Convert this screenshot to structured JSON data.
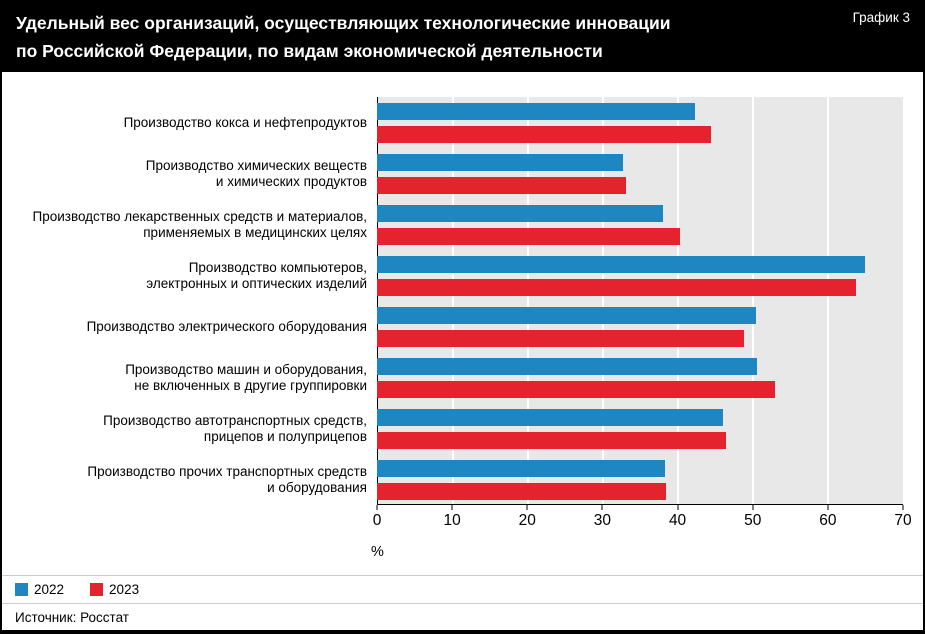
{
  "header": {
    "title": "Удельный вес организаций, осуществляющих технологические инновации\nпо Российской Федерации, по видам экономической деятельности",
    "corner_label": "График 3"
  },
  "chart_data": {
    "type": "bar",
    "orientation": "horizontal",
    "title": "Удельный вес организаций, осуществляющих технологические инновации по Российской Федерации, по видам экономической деятельности",
    "xlabel": "%",
    "xlim": [
      0,
      70
    ],
    "xticks": [
      0,
      10,
      20,
      30,
      40,
      50,
      60,
      70
    ],
    "grid": "white vertical gridlines on gray plot background",
    "plot_background": "#e8e8e8",
    "legend_position": "bottom-left",
    "categories": [
      "Производство кокса и нефтепродуктов",
      "Производство химических веществ\nи химических продуктов",
      "Производство лекарственных средств и материалов,\nприменяемых в медицинских целях",
      "Производство компьютеров,\nэлектронных и оптических изделий",
      "Производство электрического оборудования",
      "Производство машин и оборудования,\nне включенных в другие группировки",
      "Производство автотранспортных средств,\nприцепов и полуприцепов",
      "Производство прочих транспортных средств\nи оборудования"
    ],
    "series": [
      {
        "name": "2022",
        "color": "#1e87c2",
        "values": [
          42.3,
          32.7,
          38.0,
          64.9,
          50.4,
          50.6,
          46.0,
          38.3
        ]
      },
      {
        "name": "2023",
        "color": "#e5232e",
        "values": [
          44.4,
          33.2,
          40.3,
          63.8,
          48.9,
          53.0,
          46.4,
          38.5
        ]
      }
    ]
  },
  "legend": {
    "items": [
      {
        "label": "2022",
        "color": "#1e87c2"
      },
      {
        "label": "2023",
        "color": "#e5232e"
      }
    ]
  },
  "footer": {
    "source": "Источник: Росстат"
  }
}
